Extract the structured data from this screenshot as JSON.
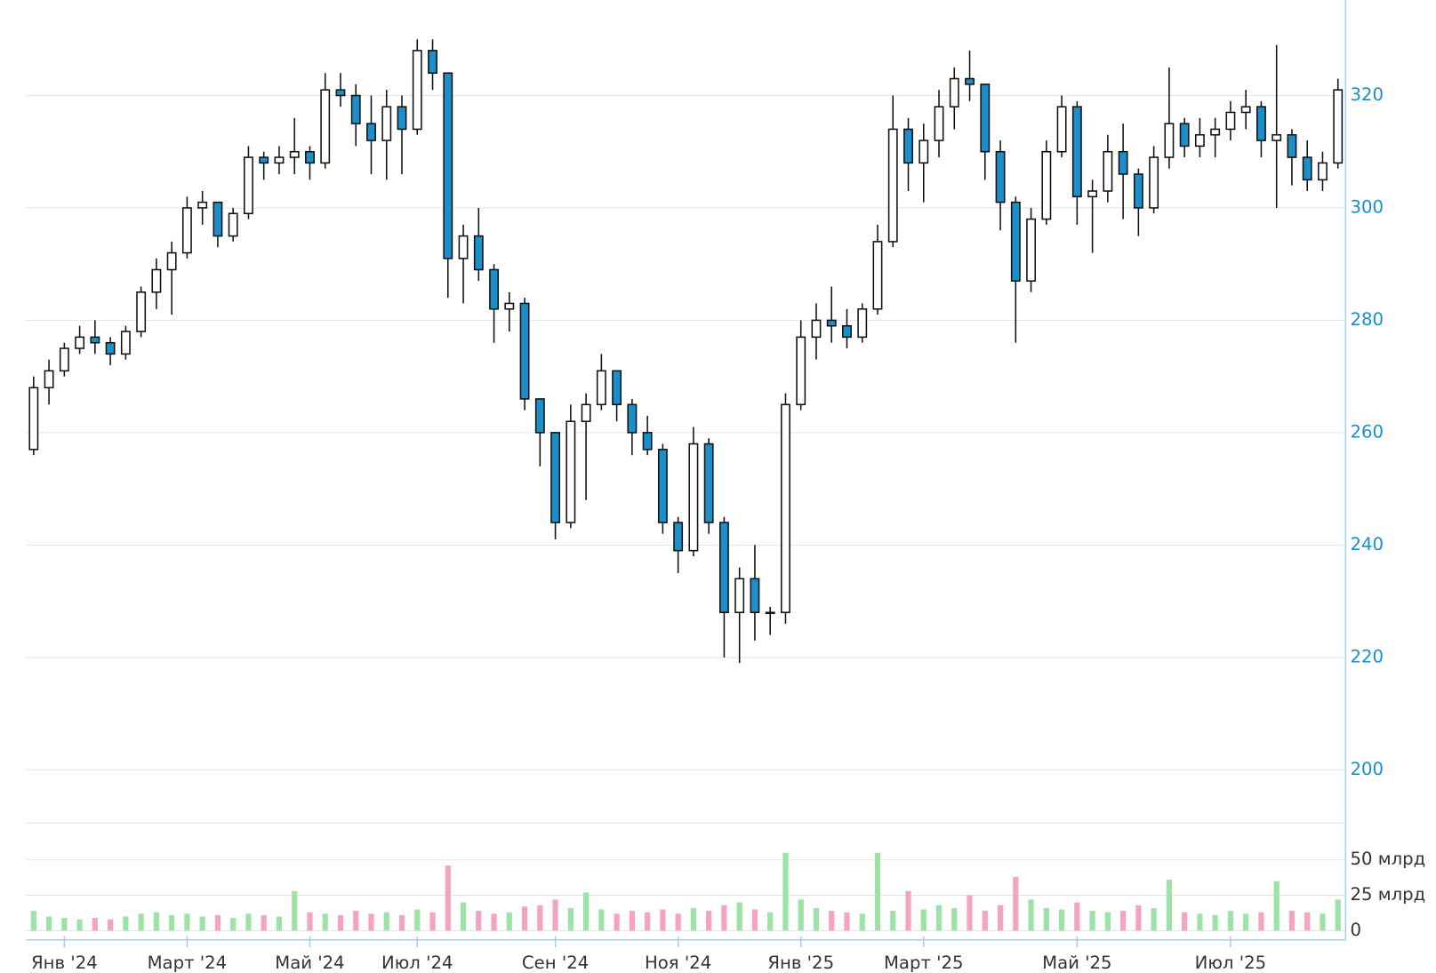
{
  "chart_data": {
    "type": "candlestick",
    "categories": [
      null,
      null,
      "Янв '24",
      null,
      null,
      null,
      null,
      null,
      null,
      null,
      "Март '24",
      null,
      null,
      null,
      null,
      null,
      null,
      null,
      "Май '24",
      null,
      null,
      null,
      null,
      null,
      null,
      "Июл '24",
      null,
      null,
      null,
      null,
      null,
      null,
      null,
      null,
      "Сен '24",
      null,
      null,
      null,
      null,
      null,
      null,
      null,
      "Ноя '24",
      null,
      null,
      null,
      null,
      null,
      null,
      null,
      "Янв '25",
      null,
      null,
      null,
      null,
      null,
      null,
      null,
      "Март '25",
      null,
      null,
      null,
      null,
      null,
      null,
      null,
      null,
      null,
      "Май '25",
      null,
      null,
      null,
      null,
      null,
      null,
      null,
      null,
      null,
      "Июл '25",
      null,
      null,
      null,
      null,
      null,
      null,
      null
    ],
    "open": [
      257,
      268,
      271,
      275,
      277,
      276,
      274,
      278,
      285,
      289,
      292,
      300,
      301,
      295,
      299,
      309,
      308,
      309,
      310,
      308,
      321,
      320,
      315,
      312,
      318,
      314,
      328,
      324,
      291,
      295,
      289,
      282,
      283,
      266,
      260,
      244,
      262,
      265,
      271,
      265,
      260,
      257,
      244,
      239,
      258,
      244,
      228,
      234,
      228,
      228,
      265,
      277,
      280,
      279,
      277,
      282,
      294,
      314,
      308,
      312,
      318,
      323,
      322,
      310,
      301,
      287,
      298,
      310,
      318,
      302,
      303,
      310,
      306,
      300,
      309,
      315,
      311,
      313,
      314,
      317,
      318,
      312,
      313,
      309,
      305,
      308
    ],
    "high": [
      270,
      273,
      276,
      279,
      280,
      277,
      279,
      286,
      291,
      294,
      302,
      303,
      301,
      300,
      311,
      310,
      311,
      316,
      311,
      324,
      324,
      322,
      320,
      321,
      320,
      330,
      330,
      324,
      297,
      300,
      290,
      285,
      284,
      266,
      260,
      265,
      267,
      274,
      271,
      266,
      263,
      258,
      245,
      261,
      259,
      245,
      236,
      240,
      229,
      267,
      280,
      283,
      286,
      282,
      283,
      297,
      320,
      316,
      315,
      321,
      325,
      328,
      322,
      312,
      302,
      300,
      312,
      320,
      319,
      305,
      313,
      315,
      307,
      311,
      325,
      316,
      316,
      316,
      319,
      321,
      319,
      329,
      314,
      312,
      310,
      323
    ],
    "low": [
      256,
      265,
      270,
      274,
      274,
      272,
      273,
      277,
      282,
      281,
      291,
      297,
      293,
      294,
      298,
      305,
      306,
      306,
      305,
      307,
      318,
      311,
      306,
      305,
      306,
      313,
      321,
      284,
      283,
      287,
      276,
      278,
      264,
      254,
      241,
      243,
      248,
      264,
      262,
      256,
      256,
      242,
      235,
      238,
      242,
      220,
      219,
      223,
      224,
      226,
      264,
      273,
      276,
      275,
      276,
      281,
      293,
      303,
      301,
      309,
      314,
      319,
      305,
      296,
      276,
      285,
      297,
      309,
      297,
      292,
      301,
      298,
      295,
      299,
      307,
      309,
      309,
      309,
      312,
      314,
      309,
      300,
      304,
      303,
      303,
      307
    ],
    "close": [
      268,
      271,
      275,
      277,
      276,
      274,
      278,
      285,
      289,
      292,
      300,
      301,
      295,
      299,
      309,
      308,
      309,
      310,
      308,
      321,
      320,
      315,
      312,
      318,
      314,
      328,
      324,
      291,
      295,
      289,
      282,
      283,
      266,
      260,
      244,
      262,
      265,
      271,
      265,
      260,
      257,
      244,
      239,
      258,
      244,
      228,
      234,
      228,
      228,
      265,
      277,
      280,
      279,
      277,
      282,
      294,
      314,
      308,
      312,
      318,
      323,
      322,
      310,
      301,
      287,
      298,
      310,
      318,
      302,
      303,
      310,
      306,
      300,
      309,
      315,
      311,
      313,
      314,
      317,
      318,
      312,
      313,
      309,
      305,
      308,
      321
    ],
    "up_color": "#ffffff",
    "down_color": "#1a8fc9",
    "ylim": [
      200,
      337
    ],
    "yticks": [
      200,
      220,
      240,
      260,
      280,
      300,
      320
    ],
    "grid": true,
    "volume": {
      "values": [
        14,
        10,
        9,
        8,
        9,
        8,
        10,
        12,
        13,
        11,
        12,
        10,
        11,
        9,
        12,
        11,
        10,
        28,
        13,
        12,
        11,
        14,
        12,
        13,
        11,
        15,
        13,
        46,
        20,
        14,
        12,
        13,
        17,
        18,
        22,
        16,
        27,
        15,
        12,
        14,
        13,
        15,
        12,
        16,
        14,
        18,
        20,
        15,
        13,
        55,
        22,
        16,
        14,
        13,
        12,
        55,
        14,
        28,
        15,
        18,
        16,
        25,
        14,
        18,
        38,
        22,
        16,
        15,
        20,
        14,
        13,
        14,
        18,
        16,
        36,
        13,
        12,
        11,
        14,
        12,
        13,
        35,
        14,
        13,
        12,
        22
      ],
      "ylim": [
        0,
        76
      ],
      "yticks": [
        0,
        {
          "value": 25,
          "label": "25 млрд"
        },
        {
          "value": 50,
          "label": "50 млрд"
        }
      ],
      "up_color": "#9de3a8",
      "down_color": "#f4a3c0"
    }
  }
}
